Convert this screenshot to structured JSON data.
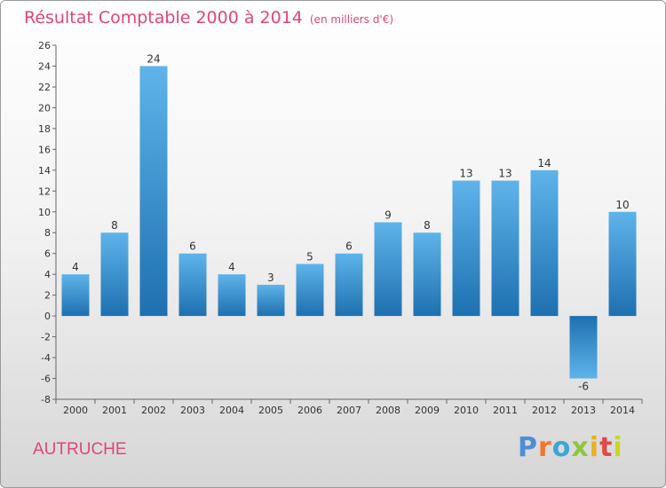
{
  "header": {
    "title": "Résultat Comptable 2000 à 2014",
    "unit": "(en milliers d'€)"
  },
  "footer": {
    "city": "AUTRUCHE",
    "logo": "Proxiti"
  },
  "colors": {
    "title": "#e0457b",
    "bar_top": "#5eb4ea",
    "bar_bottom": "#1e70b0",
    "axis": "#666666",
    "logo_letters": [
      "#4d8ed6",
      "#f0772b",
      "#3aa6d9",
      "#8ec63f",
      "#e9b11e",
      "#e04a48",
      "#c6d828"
    ]
  },
  "chart_data": {
    "type": "bar",
    "title": "Résultat Comptable 2000 à 2014",
    "subtitle": "(en milliers d'€)",
    "xlabel": "",
    "ylabel": "",
    "categories": [
      "2000",
      "2001",
      "2002",
      "2003",
      "2004",
      "2005",
      "2006",
      "2007",
      "2008",
      "2009",
      "2010",
      "2011",
      "2012",
      "2013",
      "2014"
    ],
    "values": [
      4,
      8,
      24,
      6,
      4,
      3,
      5,
      6,
      9,
      8,
      13,
      13,
      14,
      -6,
      10
    ],
    "ylim": [
      -8,
      26
    ],
    "yticks": [
      26,
      24,
      22,
      20,
      18,
      16,
      14,
      12,
      10,
      8,
      6,
      4,
      2,
      0,
      -2,
      -4,
      -6,
      -8
    ],
    "grid": false,
    "legend": "none"
  }
}
